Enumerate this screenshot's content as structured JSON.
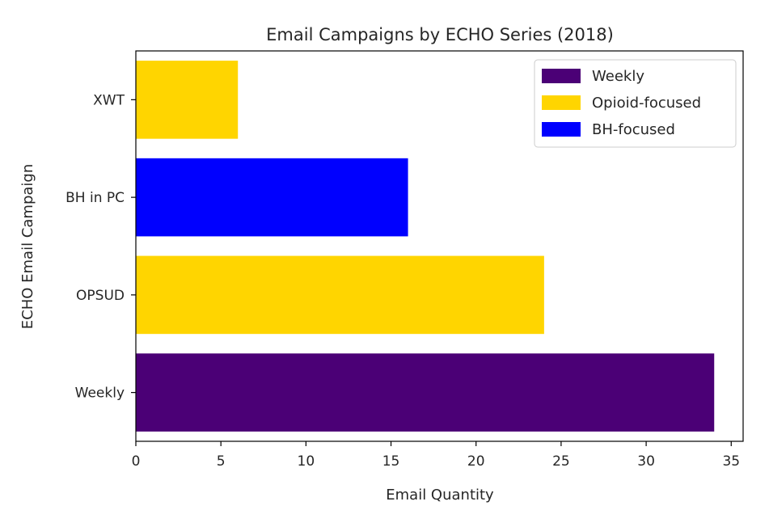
{
  "chart_data": {
    "type": "bar",
    "orientation": "horizontal",
    "title": "Email Campaigns by ECHO Series (2018)",
    "xlabel": "Email Quantity",
    "ylabel": "ECHO Email Campaign",
    "xlim": [
      0,
      35.7
    ],
    "xticks": [
      "0",
      "5",
      "10",
      "15",
      "20",
      "25",
      "30",
      "35"
    ],
    "categories": [
      "Weekly",
      "OPSUD",
      "BH in PC",
      "XWT"
    ],
    "values": [
      34,
      24,
      16,
      6
    ],
    "bar_series": [
      "Weekly",
      "Opioid-focused",
      "BH-focused",
      "Opioid-focused"
    ],
    "legend": {
      "placement": "top-right",
      "items": [
        {
          "label": "Weekly",
          "color": "#4b0076"
        },
        {
          "label": "Opioid-focused",
          "color": "#ffd500"
        },
        {
          "label": "BH-focused",
          "color": "#0000ff"
        }
      ]
    },
    "grid": false
  }
}
